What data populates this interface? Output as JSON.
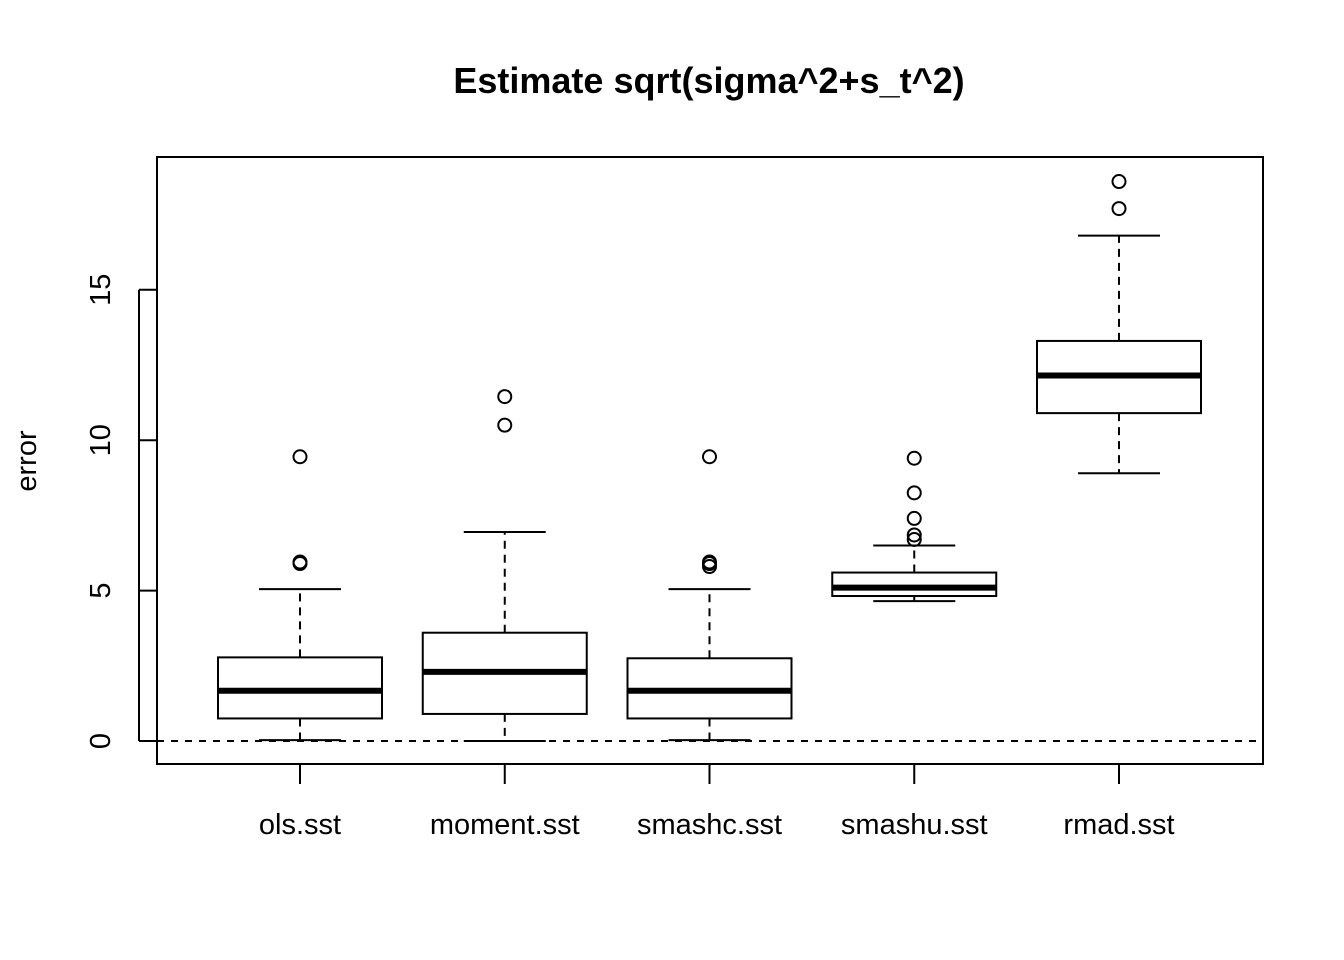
{
  "chart_data": {
    "type": "box",
    "title": "Estimate sqrt(sigma^2+s_t^2)",
    "xlabel": "",
    "ylabel": "error",
    "categories": [
      "ols.sst",
      "moment.sst",
      "smashc.sst",
      "smashu.sst",
      "rmad.sst"
    ],
    "ylim": [
      -0.75,
      19.4
    ],
    "yticks": [
      0,
      5,
      10,
      15
    ],
    "reference_line": {
      "y": 0,
      "style": "dashed"
    },
    "boxes": [
      {
        "name": "ols.sst",
        "whisker_low": 0.03,
        "q1": 0.75,
        "median": 1.67,
        "q3": 2.78,
        "whisker_high": 5.05,
        "outliers": [
          5.9,
          5.95,
          9.45
        ]
      },
      {
        "name": "moment.sst",
        "whisker_low": 0.0,
        "q1": 0.9,
        "median": 2.3,
        "q3": 3.6,
        "whisker_high": 6.95,
        "outliers": [
          10.5,
          11.45
        ]
      },
      {
        "name": "smashc.sst",
        "whisker_low": 0.03,
        "q1": 0.75,
        "median": 1.67,
        "q3": 2.75,
        "whisker_high": 5.05,
        "outliers": [
          5.8,
          5.9,
          5.95,
          9.45
        ]
      },
      {
        "name": "smashu.sst",
        "whisker_low": 4.65,
        "q1": 4.82,
        "median": 5.1,
        "q3": 5.6,
        "whisker_high": 6.5,
        "outliers": [
          6.7,
          6.85,
          7.4,
          8.25,
          9.4
        ]
      },
      {
        "name": "rmad.sst",
        "whisker_low": 8.9,
        "q1": 10.9,
        "median": 12.15,
        "q3": 13.3,
        "whisker_high": 16.8,
        "outliers": [
          17.7,
          18.6
        ]
      }
    ],
    "grid": false,
    "legend": "none"
  }
}
